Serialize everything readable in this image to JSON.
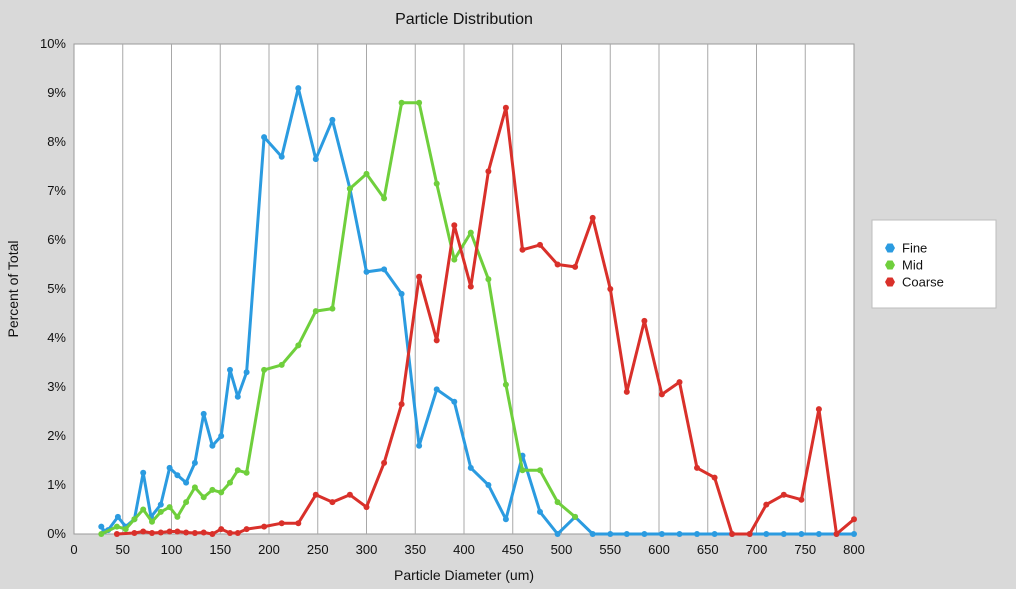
{
  "chart_data": {
    "type": "line",
    "title": "Particle Distribution",
    "xlabel": "Particle Diameter (um)",
    "ylabel": "Percent of Total",
    "xlim": [
      0,
      800
    ],
    "ylim": [
      0,
      10
    ],
    "x_ticks": [
      0,
      50,
      100,
      150,
      200,
      250,
      300,
      350,
      400,
      450,
      500,
      550,
      600,
      650,
      700,
      750,
      800
    ],
    "y_ticks": [
      0,
      1,
      2,
      3,
      4,
      5,
      6,
      7,
      8,
      9,
      10
    ],
    "y_tick_labels": [
      "0%",
      "1%",
      "2%",
      "3%",
      "4%",
      "5%",
      "6%",
      "7%",
      "8%",
      "9%",
      "10%"
    ],
    "grid": "vertical",
    "legend_position": "right",
    "series": [
      {
        "name": "Fine",
        "color": "#2b9be0",
        "points": [
          [
            28,
            0.15
          ],
          [
            31,
            0.05
          ],
          [
            35,
            0.08
          ],
          [
            45,
            0.35
          ],
          [
            53,
            0.15
          ],
          [
            62,
            0.3
          ],
          [
            71,
            1.25
          ],
          [
            79,
            0.35
          ],
          [
            89,
            0.6
          ],
          [
            98,
            1.35
          ],
          [
            106,
            1.2
          ],
          [
            115,
            1.05
          ],
          [
            124,
            1.45
          ],
          [
            133,
            2.45
          ],
          [
            142,
            1.8
          ],
          [
            151,
            2.0
          ],
          [
            160,
            3.35
          ],
          [
            168,
            2.8
          ],
          [
            177,
            3.3
          ],
          [
            195,
            8.1
          ],
          [
            213,
            7.7
          ],
          [
            230,
            9.1
          ],
          [
            248,
            7.65
          ],
          [
            265,
            8.45
          ],
          [
            283,
            7.05
          ],
          [
            300,
            5.35
          ],
          [
            318,
            5.4
          ],
          [
            336,
            4.9
          ],
          [
            354,
            1.8
          ],
          [
            372,
            2.95
          ],
          [
            390,
            2.7
          ],
          [
            407,
            1.35
          ],
          [
            425,
            1.0
          ],
          [
            443,
            0.3
          ],
          [
            460,
            1.6
          ],
          [
            478,
            0.45
          ],
          [
            496,
            0.0
          ],
          [
            514,
            0.35
          ],
          [
            532,
            0.0
          ],
          [
            550,
            0.0
          ],
          [
            567,
            0.0
          ],
          [
            585,
            0.0
          ],
          [
            603,
            0.0
          ],
          [
            621,
            0.0
          ],
          [
            639,
            0.0
          ],
          [
            657,
            0.0
          ],
          [
            675,
            0.0
          ],
          [
            693,
            0.0
          ],
          [
            710,
            0.0
          ],
          [
            728,
            0.0
          ],
          [
            746,
            0.0
          ],
          [
            764,
            0.0
          ],
          [
            782,
            0.0
          ],
          [
            800,
            0.0
          ]
        ]
      },
      {
        "name": "Mid",
        "color": "#6fcf3c",
        "points": [
          [
            28,
            0.0
          ],
          [
            44,
            0.15
          ],
          [
            53,
            0.1
          ],
          [
            62,
            0.3
          ],
          [
            71,
            0.5
          ],
          [
            80,
            0.25
          ],
          [
            89,
            0.45
          ],
          [
            98,
            0.55
          ],
          [
            106,
            0.35
          ],
          [
            115,
            0.65
          ],
          [
            124,
            0.95
          ],
          [
            133,
            0.75
          ],
          [
            142,
            0.9
          ],
          [
            151,
            0.85
          ],
          [
            160,
            1.05
          ],
          [
            168,
            1.3
          ],
          [
            177,
            1.25
          ],
          [
            195,
            3.35
          ],
          [
            213,
            3.45
          ],
          [
            230,
            3.85
          ],
          [
            248,
            4.55
          ],
          [
            265,
            4.6
          ],
          [
            283,
            7.05
          ],
          [
            300,
            7.35
          ],
          [
            318,
            6.85
          ],
          [
            336,
            8.8
          ],
          [
            354,
            8.8
          ],
          [
            372,
            7.15
          ],
          [
            390,
            5.6
          ],
          [
            407,
            6.15
          ],
          [
            425,
            5.2
          ],
          [
            443,
            3.05
          ],
          [
            460,
            1.3
          ],
          [
            478,
            1.3
          ],
          [
            496,
            0.65
          ],
          [
            514,
            0.35
          ]
        ]
      },
      {
        "name": "Coarse",
        "color": "#d9302a",
        "points": [
          [
            44,
            0.0
          ],
          [
            62,
            0.02
          ],
          [
            71,
            0.05
          ],
          [
            80,
            0.02
          ],
          [
            89,
            0.03
          ],
          [
            98,
            0.05
          ],
          [
            106,
            0.05
          ],
          [
            115,
            0.03
          ],
          [
            124,
            0.02
          ],
          [
            133,
            0.03
          ],
          [
            142,
            0.0
          ],
          [
            151,
            0.1
          ],
          [
            160,
            0.02
          ],
          [
            168,
            0.02
          ],
          [
            177,
            0.1
          ],
          [
            195,
            0.15
          ],
          [
            213,
            0.22
          ],
          [
            230,
            0.22
          ],
          [
            248,
            0.8
          ],
          [
            265,
            0.65
          ],
          [
            283,
            0.8
          ],
          [
            300,
            0.55
          ],
          [
            318,
            1.45
          ],
          [
            336,
            2.65
          ],
          [
            354,
            5.25
          ],
          [
            372,
            3.95
          ],
          [
            390,
            6.3
          ],
          [
            407,
            5.05
          ],
          [
            425,
            7.4
          ],
          [
            443,
            8.7
          ],
          [
            460,
            5.8
          ],
          [
            478,
            5.9
          ],
          [
            496,
            5.5
          ],
          [
            514,
            5.45
          ],
          [
            532,
            6.45
          ],
          [
            550,
            5.0
          ],
          [
            567,
            2.9
          ],
          [
            585,
            4.35
          ],
          [
            603,
            2.85
          ],
          [
            621,
            3.1
          ],
          [
            639,
            1.35
          ],
          [
            657,
            1.15
          ],
          [
            675,
            0.0
          ],
          [
            693,
            0.0
          ],
          [
            710,
            0.6
          ],
          [
            728,
            0.8
          ],
          [
            746,
            0.7
          ],
          [
            764,
            2.55
          ],
          [
            782,
            0.0
          ],
          [
            800,
            0.3
          ]
        ]
      }
    ]
  }
}
